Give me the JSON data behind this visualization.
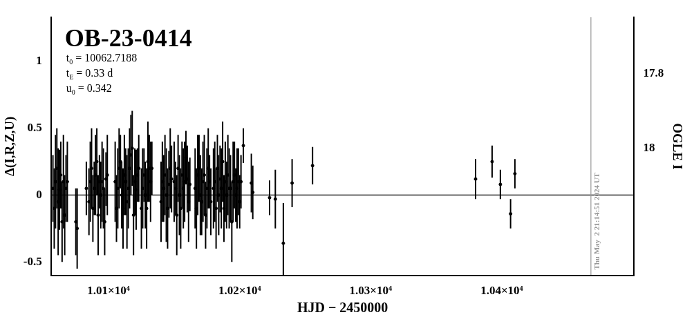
{
  "chart_data": {
    "type": "scatter",
    "title": "OB-23-0414",
    "xlabel": "HJD − 2450000",
    "ylabel": "Δ(I,R,Z,U)",
    "y2label": "OGLE I",
    "annotations": [
      "t$_{0}$ = 10062.7188",
      "t$_{E}$ = 0.33 d",
      "u$_{0}$ = 0.342",
      {
        "text": "Thu May  2 21:14:51 2024 UT",
        "x": 10468
      }
    ],
    "series": [
      {
        "color": "#000000",
        "x": [
          10057.5,
          10058.5,
          10059.5,
          10060.5,
          10061.5,
          10062.5,
          10063.5,
          10064.5,
          10065.5,
          10066.5,
          10067.5,
          10068.5,
          10075,
          10076,
          10083,
          10085,
          10086,
          10087,
          10088,
          10089,
          10090,
          10091,
          10092,
          10093,
          10094,
          10095,
          10096,
          10097,
          10098,
          10099,
          10105,
          10106,
          10107,
          10108,
          10109,
          10110,
          10111,
          10112,
          10113,
          10114,
          10115,
          10116,
          10117,
          10118,
          10119,
          10120,
          10121,
          10122,
          10123,
          10125,
          10126,
          10127,
          10128,
          10129,
          10130,
          10131,
          10132,
          10133,
          10140,
          10141,
          10142,
          10143,
          10144,
          10145,
          10146,
          10147,
          10148,
          10150,
          10151,
          10152,
          10153,
          10154,
          10155,
          10156,
          10157,
          10158,
          10159,
          10160,
          10161,
          10162,
          10166,
          10167,
          10168,
          10169,
          10170,
          10171,
          10172,
          10173,
          10174,
          10175,
          10176,
          10177,
          10178,
          10180,
          10181,
          10182,
          10183,
          10184,
          10185,
          10186,
          10187,
          10188,
          10189,
          10190,
          10191,
          10192,
          10193,
          10194,
          10195,
          10196,
          10197,
          10198,
          10199,
          10200,
          10201,
          10202.8,
          10208.9,
          10210,
          10222.8,
          10227.2,
          10233.3,
          10240,
          10255.6,
          10380,
          10392.6,
          10398.9,
          10406.7,
          10410
        ],
        "values": [
          0.05,
          -0.1,
          0.1,
          0.2,
          -0.05,
          0.04,
          0.15,
          -0.2,
          0.1,
          -0.15,
          0.05,
          0.1,
          -0.2,
          -0.25,
          0.05,
          -0.05,
          0.1,
          0.2,
          -0.1,
          0.05,
          0.15,
          0.25,
          -0.15,
          0.1,
          0.0,
          0.1,
          0.05,
          -0.2,
          0.12,
          0.15,
          0.1,
          -0.1,
          0.05,
          0.2,
          0.25,
          0.0,
          -0.1,
          0.15,
          0.1,
          -0.05,
          0.05,
          0.2,
          0.3,
          0.35,
          -0.15,
          0.1,
          0.04,
          0.15,
          0.2,
          -0.1,
          0.05,
          0.15,
          0.0,
          -0.1,
          0.25,
          0.2,
          0.1,
          0.2,
          -0.05,
          0.1,
          0.05,
          0.15,
          0.0,
          -0.1,
          0.08,
          0.2,
          0.12,
          0.1,
          0.05,
          -0.15,
          0.2,
          0.0,
          -0.1,
          0.15,
          0.05,
          0.1,
          0.28,
          0.12,
          -0.05,
          0.08,
          0.05,
          -0.1,
          0.15,
          0.2,
          0.0,
          -0.05,
          0.1,
          0.15,
          -0.15,
          0.05,
          0.2,
          0.1,
          -0.05,
          0.05,
          0.1,
          -0.1,
          0.2,
          0.0,
          0.12,
          0.05,
          0.25,
          -0.1,
          0.1,
          0.0,
          0.15,
          0.05,
          0.05,
          -0.2,
          0.1,
          0.15,
          0.0,
          0.05,
          0.1,
          -0.05,
          0.1,
          0.37,
          0.09,
          0.02,
          -0.02,
          -0.03,
          -0.36,
          0.09,
          0.22,
          0.12,
          0.25,
          0.08,
          -0.14,
          0.16
        ],
        "errors": [
          0.25,
          0.3,
          0.35,
          0.3,
          0.4,
          0.3,
          0.25,
          0.3,
          0.35,
          0.3,
          0.25,
          0.3,
          0.25,
          0.3,
          0.2,
          0.25,
          0.3,
          0.3,
          0.25,
          0.2,
          0.3,
          0.25,
          0.3,
          0.2,
          0.25,
          0.3,
          0.3,
          0.25,
          0.2,
          0.3,
          0.3,
          0.25,
          0.3,
          0.3,
          0.2,
          0.25,
          0.3,
          0.3,
          0.25,
          0.35,
          0.3,
          0.3,
          0.3,
          0.28,
          0.3,
          0.25,
          0.3,
          0.2,
          0.25,
          0.3,
          0.3,
          0.2,
          0.25,
          0.3,
          0.3,
          0.25,
          0.3,
          0.2,
          0.3,
          0.3,
          0.25,
          0.3,
          0.35,
          0.3,
          0.25,
          0.3,
          0.25,
          0.3,
          0.2,
          0.3,
          0.25,
          0.3,
          0.3,
          0.25,
          0.3,
          0.3,
          0.2,
          0.25,
          0.3,
          0.2,
          0.3,
          0.3,
          0.3,
          0.25,
          0.3,
          0.25,
          0.3,
          0.3,
          0.25,
          0.3,
          0.3,
          0.2,
          0.25,
          0.3,
          0.3,
          0.3,
          0.25,
          0.3,
          0.25,
          0.3,
          0.3,
          0.25,
          0.3,
          0.25,
          0.3,
          0.3,
          0.25,
          0.3,
          0.3,
          0.25,
          0.2,
          0.3,
          0.25,
          0.2,
          0.2,
          0.13,
          0.22,
          0.2,
          0.13,
          0.22,
          0.3,
          0.18,
          0.14,
          0.15,
          0.12,
          0.11,
          0.11,
          0.11
        ]
      }
    ],
    "xlim": [
      10056,
      10501
    ],
    "xticks": [
      {
        "value": 10100,
        "label": "1.01×10⁴"
      },
      {
        "value": 10200,
        "label": "1.02×10⁴"
      },
      {
        "value": 10300,
        "label": "1.03×10⁴"
      },
      {
        "value": 10400,
        "label": "1.04×10⁴"
      }
    ],
    "ylim": [
      -0.6,
      1.33
    ],
    "yticks": [
      -0.5,
      0,
      0.5,
      1
    ],
    "y2lim": [
      18.34,
      17.65
    ],
    "y2ticks": [
      17.8,
      18
    ],
    "ref_lines": [
      {
        "axis": "y",
        "value": 0,
        "color": "#000000"
      },
      {
        "axis": "x",
        "value": 10468,
        "color": "#999999"
      }
    ],
    "marker": "circle",
    "grid": false,
    "legend": false
  }
}
